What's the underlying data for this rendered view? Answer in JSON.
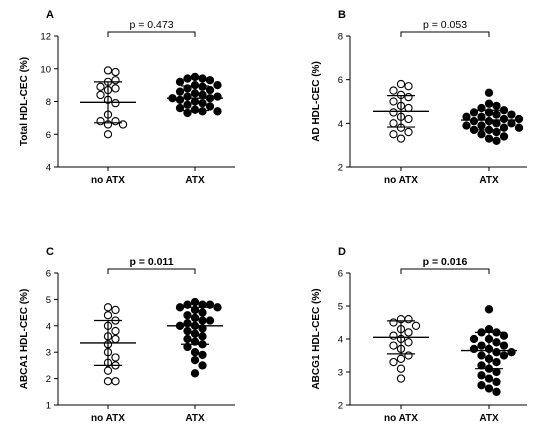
{
  "chart_data": [
    {
      "type": "scatter",
      "panel": "A",
      "ylabel": "Total HDL-CEC (%)",
      "ylim": [
        4,
        12
      ],
      "yticks": [
        4,
        6,
        8,
        10,
        12
      ],
      "categories": [
        "no ATX",
        "ATX"
      ],
      "pvalue": "p = 0.473",
      "pvalue_bold": false,
      "series": [
        {
          "marker": "open",
          "values": [
            9.9,
            9.8,
            9.2,
            9.3,
            8.9,
            8.8,
            8.7,
            8.4,
            8.1,
            7.9,
            7.2,
            6.8,
            6.8,
            6.6,
            6.6,
            6.0
          ],
          "mean": 7.95,
          "sd": 1.25
        },
        {
          "marker": "filled",
          "values": [
            9.5,
            9.4,
            9.4,
            9.3,
            9.2,
            9.0,
            9.0,
            8.9,
            8.8,
            8.7,
            8.6,
            8.5,
            8.4,
            8.3,
            8.3,
            8.2,
            8.2,
            8.1,
            8.0,
            7.9,
            7.8,
            7.7,
            7.6,
            7.5,
            7.4,
            7.4,
            7.3
          ],
          "mean": 8.2,
          "sd": 0.75
        }
      ]
    },
    {
      "type": "scatter",
      "panel": "B",
      "ylabel": "AD HDL-CEC (%)",
      "ylim": [
        2,
        8
      ],
      "yticks": [
        2,
        4,
        6,
        8
      ],
      "categories": [
        "no ATX",
        "ATX"
      ],
      "pvalue": "p = 0.053",
      "pvalue_bold": false,
      "series": [
        {
          "marker": "open",
          "values": [
            5.8,
            5.7,
            5.5,
            5.3,
            5.2,
            5.0,
            4.8,
            4.7,
            4.5,
            4.3,
            4.2,
            4.0,
            3.8,
            3.6,
            3.5,
            3.3
          ],
          "mean": 4.55,
          "sd": 0.72
        },
        {
          "marker": "filled",
          "values": [
            5.4,
            4.9,
            4.8,
            4.7,
            4.6,
            4.5,
            4.5,
            4.4,
            4.4,
            4.3,
            4.3,
            4.2,
            4.2,
            4.1,
            4.1,
            4.0,
            4.0,
            3.9,
            3.9,
            3.8,
            3.8,
            3.7,
            3.7,
            3.6,
            3.5,
            3.4,
            3.3,
            3.2
          ],
          "mean": 4.15,
          "sd": 0.45
        }
      ]
    },
    {
      "type": "scatter",
      "panel": "C",
      "ylabel": "ABCA1 HDL-CEC (%)",
      "ylim": [
        1,
        6
      ],
      "yticks": [
        1,
        2,
        3,
        4,
        5,
        6
      ],
      "categories": [
        "no ATX",
        "ATX"
      ],
      "pvalue": "p = 0.011",
      "pvalue_bold": true,
      "series": [
        {
          "marker": "open",
          "values": [
            4.7,
            4.6,
            4.4,
            4.2,
            4.0,
            3.8,
            3.6,
            3.5,
            3.3,
            3.0,
            2.8,
            2.6,
            2.5,
            2.3,
            1.9,
            1.9
          ],
          "mean": 3.35,
          "sd": 0.85
        },
        {
          "marker": "filled",
          "values": [
            4.9,
            4.8,
            4.8,
            4.8,
            4.7,
            4.7,
            4.6,
            4.5,
            4.4,
            4.3,
            4.2,
            4.2,
            4.1,
            4.0,
            4.0,
            3.9,
            3.8,
            3.7,
            3.6,
            3.5,
            3.4,
            3.3,
            3.2,
            3.0,
            2.9,
            2.7,
            2.5,
            2.2
          ],
          "mean": 4.0,
          "sd": 0.7
        }
      ]
    },
    {
      "type": "scatter",
      "panel": "D",
      "ylabel": "ABCG1 HDL-CEC (%)",
      "ylim": [
        2,
        6
      ],
      "yticks": [
        2,
        3,
        4,
        5,
        6
      ],
      "categories": [
        "no ATX",
        "ATX"
      ],
      "pvalue": "p = 0.016",
      "pvalue_bold": true,
      "series": [
        {
          "marker": "open",
          "values": [
            4.6,
            4.6,
            4.5,
            4.4,
            4.3,
            4.2,
            4.1,
            4.0,
            3.9,
            3.8,
            3.7,
            3.5,
            3.4,
            3.3,
            3.1,
            2.8
          ],
          "mean": 4.05,
          "sd": 0.5
        },
        {
          "marker": "filled",
          "values": [
            4.9,
            4.3,
            4.2,
            4.2,
            4.1,
            4.0,
            4.0,
            3.9,
            3.8,
            3.8,
            3.7,
            3.7,
            3.6,
            3.6,
            3.5,
            3.5,
            3.4,
            3.3,
            3.2,
            3.1,
            3.0,
            2.9,
            2.8,
            2.7,
            2.6,
            2.5,
            2.4
          ],
          "mean": 3.65,
          "sd": 0.55
        }
      ]
    }
  ]
}
